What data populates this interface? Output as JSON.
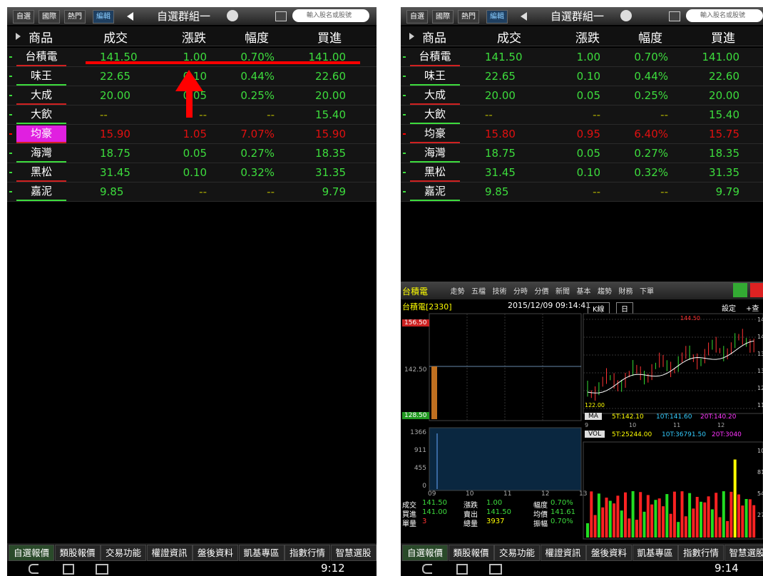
{
  "screens": [
    {
      "toolbar": {
        "tabs": [
          "自選",
          "國際",
          "熱門",
          "編輯"
        ],
        "group": "自選群組一",
        "search": "輸入股名或股號"
      },
      "columns": [
        "商品",
        "成交",
        "漲跌",
        "幅度",
        "買進"
      ],
      "rows": [
        [
          "台積電",
          "141.50",
          "1.00",
          "0.70%",
          "141.00"
        ],
        [
          "味王",
          "22.65",
          "0.10",
          "0.44%",
          "22.60"
        ],
        [
          "大成",
          "20.00",
          "0.05",
          "0.25%",
          "20.00"
        ],
        [
          "大飲",
          "--",
          "--",
          "--",
          "15.40"
        ],
        [
          "均豪",
          "15.90",
          "1.05",
          "7.07%",
          "15.90"
        ],
        [
          "海灣",
          "18.75",
          "0.05",
          "0.27%",
          "18.35"
        ],
        [
          "黑松",
          "31.45",
          "0.10",
          "0.32%",
          "31.35"
        ],
        [
          "嘉泥",
          "9.85",
          "--",
          "--",
          "9.79"
        ]
      ],
      "row_colors": [
        "#3ddc3d",
        "#3ddc3d",
        "#3ddc3d",
        "#3ddc3d",
        "#e01010",
        "#3ddc3d",
        "#3ddc3d",
        "#3ddc3d"
      ],
      "highlight_row": 4,
      "bottom_tabs": [
        "自選報價",
        "類股報價",
        "交易功能",
        "權證資訊",
        "盤後資料",
        "凱基專區",
        "指數行情",
        "智慧選股"
      ],
      "time": "9:12"
    },
    {
      "toolbar": {
        "tabs": [
          "自選",
          "國際",
          "熱門",
          "編輯"
        ],
        "group": "自選群組一",
        "search": "輸入股名或股號"
      },
      "columns": [
        "商品",
        "成交",
        "漲跌",
        "幅度",
        "買進"
      ],
      "rows": [
        [
          "台積電",
          "141.50",
          "1.00",
          "0.70%",
          "141.00"
        ],
        [
          "味王",
          "22.65",
          "0.10",
          "0.44%",
          "22.60"
        ],
        [
          "大成",
          "20.00",
          "0.05",
          "0.25%",
          "20.00"
        ],
        [
          "大飲",
          "--",
          "--",
          "--",
          "15.40"
        ],
        [
          "均豪",
          "15.80",
          "0.95",
          "6.40%",
          "15.75"
        ],
        [
          "海灣",
          "18.75",
          "0.05",
          "0.27%",
          "18.35"
        ],
        [
          "黑松",
          "31.45",
          "0.10",
          "0.32%",
          "31.35"
        ],
        [
          "嘉泥",
          "9.85",
          "--",
          "--",
          "9.79"
        ]
      ],
      "row_colors": [
        "#3ddc3d",
        "#3ddc3d",
        "#3ddc3d",
        "#3ddc3d",
        "#e01010",
        "#3ddc3d",
        "#3ddc3d",
        "#3ddc3d"
      ],
      "bottom_tabs": [
        "自選報價",
        "類股報價",
        "交易功能",
        "權證資訊",
        "盤後資料",
        "凱基專區",
        "指數行情",
        "智慧選股"
      ],
      "time": "9:14",
      "detail": {
        "tabs": [
          "台積電",
          "走勢",
          "五檔",
          "技術",
          "分時",
          "分價",
          "新聞",
          "基本",
          "趨勢",
          "財務",
          "下單"
        ],
        "symbol": "台積電[2330]",
        "datetime": "2015/12/09 09:14:41",
        "k_tabs": [
          "K線",
          "日"
        ],
        "settings": "設定",
        "add": "+查",
        "price_labels": [
          "156.50",
          "142.50",
          "128.50"
        ],
        "volume_labels": [
          "1366",
          "911",
          "455",
          "0"
        ],
        "time_labels": [
          "09",
          "10",
          "11",
          "12",
          "13"
        ],
        "info": [
          [
            "成交",
            "141.50",
            "漲跌",
            "1.00",
            "幅度",
            "0.70%"
          ],
          [
            "買進",
            "141.00",
            "賣出",
            "141.50",
            "均價",
            "141.61"
          ],
          [
            "單量",
            "3",
            "總量",
            "3937",
            "振幅",
            "0.70%"
          ]
        ],
        "k_labels": [
          "146.6",
          "141.5",
          "135.9",
          "130.5",
          "125.2",
          "119.8"
        ],
        "k_high": "144.50",
        "k_low": "122.00",
        "ma": "MA",
        "ma_values": [
          "5T:142.10",
          "10T:141.60",
          "20T:140.20"
        ],
        "k_x_labels": [
          "9",
          "10",
          "11",
          "12"
        ],
        "vol": "VOL",
        "vol_values": [
          "5T:25244.00",
          "10T:36791.50",
          "20T:3040"
        ],
        "vol_labels": [
          "108",
          "81",
          "54",
          "27"
        ]
      }
    }
  ]
}
